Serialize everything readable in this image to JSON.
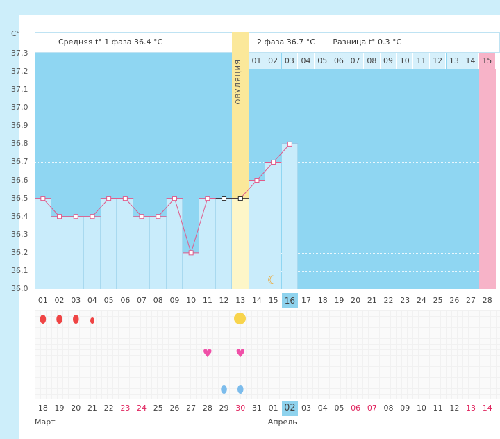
{
  "chart_data": {
    "type": "line",
    "yunit": "C°",
    "ylim": [
      36.0,
      37.3
    ],
    "yticks": [
      "37.3",
      "37.2",
      "37.1",
      "37.0",
      "36.9",
      "36.8",
      "36.7",
      "36.6",
      "36.5",
      "36.4",
      "36.3",
      "36.2",
      "36.1",
      "36.0"
    ],
    "cycle_days": [
      "01",
      "02",
      "03",
      "04",
      "05",
      "06",
      "07",
      "08",
      "09",
      "10",
      "11",
      "12",
      "13",
      "14",
      "15",
      "16",
      "17",
      "18",
      "19",
      "20",
      "21",
      "22",
      "23",
      "24",
      "25",
      "26",
      "27",
      "28"
    ],
    "temperatures": [
      36.5,
      36.4,
      36.4,
      36.4,
      36.5,
      36.5,
      36.4,
      36.4,
      36.5,
      36.2,
      36.5,
      36.5,
      36.5,
      36.6,
      36.7,
      36.8
    ],
    "excluded_days": [
      12,
      13
    ],
    "ovulation_day": 13,
    "ovulation_label": "ОВУЛЯЦИЯ",
    "current_day": 16,
    "predicted_period_day": 28,
    "phase1_text": "Средняя t° 1 фаза 36.4 °C",
    "phase2_text": "2 фаза 36.7 °C",
    "diff_text": "Разница t° 0.3 °C",
    "phase2_days": [
      "01",
      "02",
      "03",
      "04",
      "05",
      "06",
      "07",
      "08",
      "09",
      "10",
      "11",
      "12",
      "13",
      "14",
      "15"
    ],
    "moon_day": 15,
    "markers": {
      "menstruation_large": [
        1,
        2,
        3
      ],
      "menstruation_small": [
        4
      ],
      "ovulation_sun": [
        13
      ],
      "hearts": [
        11,
        13
      ],
      "blue_drops": [
        12,
        13
      ]
    },
    "dates": [
      "18",
      "19",
      "20",
      "21",
      "22",
      "23",
      "24",
      "25",
      "26",
      "27",
      "28",
      "29",
      "30",
      "31",
      "01",
      "02",
      "03",
      "04",
      "05",
      "06",
      "07",
      "08",
      "09",
      "10",
      "11",
      "12",
      "13",
      "14"
    ],
    "weekend_dates_idx": [
      5,
      6,
      12,
      19,
      20,
      26,
      27
    ],
    "today_date_idx": 15,
    "months": [
      "Март",
      "Апрель"
    ],
    "colors": {
      "bg": "#8fd6f2",
      "bar": "#c9ecfb",
      "ovulation": "#fbe89a",
      "ovulation_bar": "#fdf6c8",
      "period": "#f7b3c8",
      "line": "#e05a8a",
      "highlight": "#8fd3ee"
    }
  }
}
